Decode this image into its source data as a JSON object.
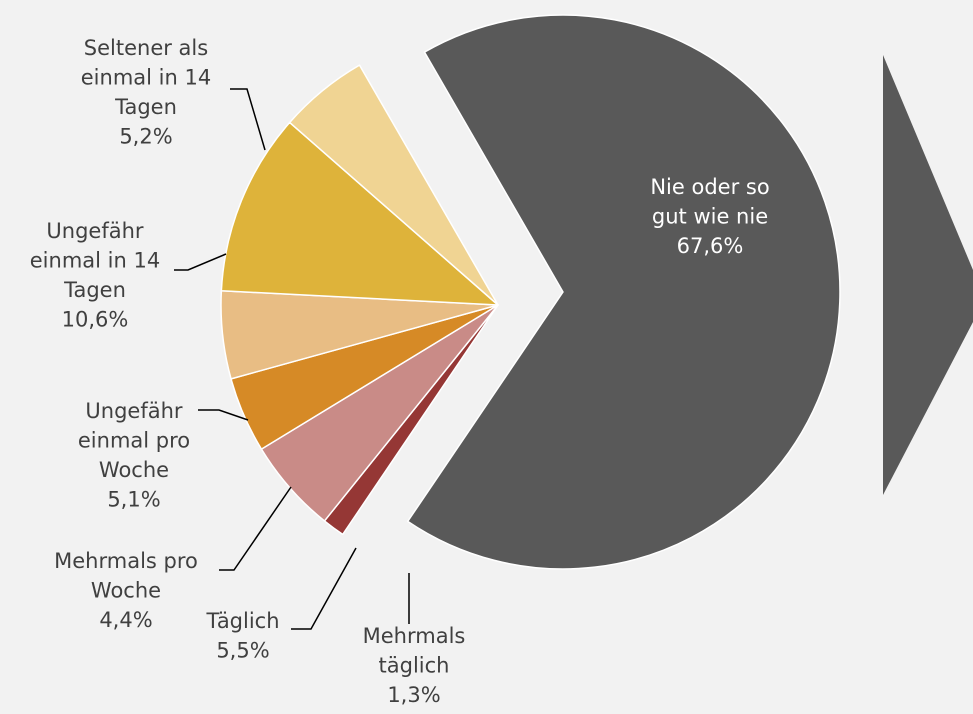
{
  "chart_data": {
    "type": "pie",
    "title": "",
    "unit": "%",
    "slices": [
      {
        "label": [
          "Nie oder so",
          "gut wie nie"
        ],
        "value_label": "67,6%",
        "value": 67.6,
        "color": "#595959",
        "exploded": true
      },
      {
        "label": [
          "Mehrmals",
          "täglich"
        ],
        "value_label": "1,3%",
        "value": 1.3,
        "color": "#953735"
      },
      {
        "label": [
          "Täglich"
        ],
        "value_label": "5,5%",
        "value": 5.5,
        "color": "#c98b87"
      },
      {
        "label": [
          "Mehrmals pro",
          "Woche"
        ],
        "value_label": "4,4%",
        "value": 4.4,
        "color": "#d68a26"
      },
      {
        "label": [
          "Ungefähr",
          "einmal pro",
          "Woche"
        ],
        "value_label": "5,1%",
        "value": 5.1,
        "color": "#e8bd84"
      },
      {
        "label": [
          "Ungefähr",
          "einmal in 14",
          "Tagen"
        ],
        "value_label": "10,6%",
        "value": 10.6,
        "color": "#deb33a"
      },
      {
        "label": [
          "Seltener als",
          "einmal in 14",
          "Tagen"
        ],
        "value_label": "5,2%",
        "value": 5.2,
        "color": "#f0d493"
      }
    ],
    "legend": "none",
    "decoration": {
      "arrow_color": "#595959"
    }
  }
}
